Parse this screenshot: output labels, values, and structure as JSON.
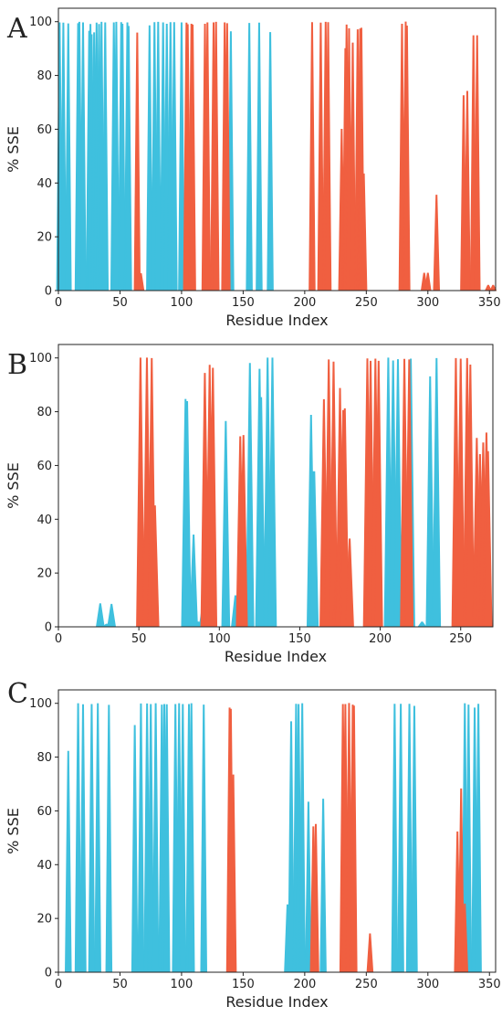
{
  "colors": {
    "helix": "#F05F40",
    "strand": "#3FC0DE",
    "axis": "#222222"
  },
  "chart_data": [
    {
      "panel": "A",
      "type": "area",
      "xlabel": "Residue Index",
      "ylabel": "% SSE",
      "xlim": [
        0,
        355
      ],
      "ylim": [
        0,
        105
      ],
      "xticks": [
        0,
        50,
        100,
        150,
        200,
        250,
        300,
        350
      ],
      "yticks": [
        0,
        20,
        40,
        60,
        80,
        100
      ],
      "blue": [
        [
          1,
          99.6
        ],
        [
          4,
          99.5
        ],
        [
          8,
          99.2
        ],
        [
          16,
          99.3
        ],
        [
          17,
          99.8
        ],
        [
          20,
          99.6
        ],
        [
          25,
          96.5
        ],
        [
          26,
          99
        ],
        [
          27,
          95.2
        ],
        [
          29,
          95.9
        ],
        [
          31,
          99.5
        ],
        [
          33,
          99
        ],
        [
          35,
          99.8
        ],
        [
          38,
          99.6
        ],
        [
          45,
          99.6
        ],
        [
          47,
          99.8
        ],
        [
          51,
          99.7
        ],
        [
          52,
          99.1
        ],
        [
          56,
          99.6
        ],
        [
          57,
          98.3
        ],
        [
          74,
          98.5
        ],
        [
          78,
          99.7
        ],
        [
          81,
          99.8
        ],
        [
          85,
          99.6
        ],
        [
          88,
          99.1
        ],
        [
          91,
          99.7
        ],
        [
          94,
          99.7
        ],
        [
          100,
          99.6
        ],
        [
          101,
          34
        ],
        [
          140,
          96.3
        ],
        [
          155,
          99.4
        ],
        [
          163,
          99.5
        ],
        [
          172,
          96
        ]
      ],
      "red": [
        [
          64,
          95.8
        ],
        [
          67,
          6.3
        ],
        [
          104,
          99.5
        ],
        [
          105,
          98.9
        ],
        [
          108,
          99.1
        ],
        [
          109,
          98.8
        ],
        [
          119,
          99.1
        ],
        [
          121,
          99.6
        ],
        [
          126,
          99.6
        ],
        [
          128,
          99.8
        ],
        [
          135,
          99.6
        ],
        [
          137,
          99.3
        ],
        [
          206,
          99.7
        ],
        [
          213,
          99.5
        ],
        [
          217,
          99.8
        ],
        [
          219,
          99.7
        ],
        [
          230,
          60
        ],
        [
          233,
          90
        ],
        [
          234,
          98.8
        ],
        [
          236,
          97.4
        ],
        [
          239,
          92.1
        ],
        [
          243,
          97
        ],
        [
          245,
          97.3
        ],
        [
          246,
          97.6
        ],
        [
          248,
          43.4
        ],
        [
          279,
          99.1
        ],
        [
          282,
          99.9
        ],
        [
          283,
          98.4
        ],
        [
          297,
          6.5
        ],
        [
          300,
          6.5
        ],
        [
          307,
          35.5
        ],
        [
          329,
          72.5
        ],
        [
          332,
          74.1
        ],
        [
          337,
          94.8
        ],
        [
          340,
          94.8
        ],
        [
          349,
          2
        ],
        [
          353,
          2
        ]
      ]
    },
    {
      "panel": "B",
      "type": "area",
      "xlabel": "Residue Index",
      "ylabel": "% SSE",
      "xlim": [
        0,
        270
      ],
      "ylim": [
        0,
        105
      ],
      "xticks": [
        0,
        50,
        100,
        150,
        200,
        250
      ],
      "yticks": [
        0,
        20,
        40,
        60,
        80,
        100
      ],
      "blue": [
        [
          26,
          8.6
        ],
        [
          30,
          1
        ],
        [
          33,
          8.4
        ],
        [
          79,
          84.6
        ],
        [
          80,
          83.8
        ],
        [
          84,
          34.2
        ],
        [
          87,
          1.8
        ],
        [
          90,
          9.1
        ],
        [
          104,
          76.4
        ],
        [
          110,
          11.6
        ],
        [
          112,
          1.3
        ],
        [
          119,
          98
        ],
        [
          125,
          95.8
        ],
        [
          126,
          85.3
        ],
        [
          130,
          100
        ],
        [
          133,
          100
        ],
        [
          157,
          78.7
        ],
        [
          158,
          57.7
        ],
        [
          159,
          57.7
        ],
        [
          205,
          100
        ],
        [
          208,
          98.9
        ],
        [
          211,
          99.4
        ],
        [
          219,
          99.6
        ],
        [
          226,
          1.8
        ],
        [
          231,
          93
        ],
        [
          233,
          11
        ],
        [
          235,
          99.8
        ]
      ],
      "red": [
        [
          51,
          100
        ],
        [
          55,
          100
        ],
        [
          58,
          99.8
        ],
        [
          60,
          45
        ],
        [
          91,
          94.3
        ],
        [
          94,
          97.3
        ],
        [
          96,
          96.2
        ],
        [
          113,
          70.7
        ],
        [
          115,
          71.2
        ],
        [
          165,
          84.5
        ],
        [
          168,
          99.3
        ],
        [
          171,
          98.5
        ],
        [
          173,
          26
        ],
        [
          174,
          29.5
        ],
        [
          175,
          88.7
        ],
        [
          177,
          80.5
        ],
        [
          178,
          81.1
        ],
        [
          181,
          32.7
        ],
        [
          192,
          99.7
        ],
        [
          194,
          98.8
        ],
        [
          197,
          99.6
        ],
        [
          199,
          98.8
        ],
        [
          215,
          99.5
        ],
        [
          218,
          99.3
        ],
        [
          247,
          99.8
        ],
        [
          250,
          99.6
        ],
        [
          254,
          99.8
        ],
        [
          256,
          97.4
        ],
        [
          260,
          70.1
        ],
        [
          262,
          64.1
        ],
        [
          264,
          68.4
        ],
        [
          266,
          72.1
        ],
        [
          267,
          65.2
        ]
      ]
    },
    {
      "panel": "C",
      "type": "area",
      "xlabel": "Residue Index",
      "ylabel": "% SSE",
      "xlim": [
        0,
        355
      ],
      "ylim": [
        0,
        105
      ],
      "xticks": [
        0,
        50,
        100,
        150,
        200,
        250,
        300,
        350
      ],
      "yticks": [
        0,
        20,
        40,
        60,
        80,
        100
      ],
      "blue": [
        [
          8,
          82.2
        ],
        [
          16,
          99.9
        ],
        [
          20,
          99.5
        ],
        [
          27,
          99.6
        ],
        [
          32,
          99.9
        ],
        [
          41,
          99.3
        ],
        [
          62,
          91.8
        ],
        [
          67,
          99.8
        ],
        [
          72,
          99.8
        ],
        [
          75,
          99.6
        ],
        [
          79,
          99.9
        ],
        [
          84,
          99.4
        ],
        [
          86,
          99.6
        ],
        [
          88,
          99.5
        ],
        [
          95,
          99.6
        ],
        [
          98,
          99.9
        ],
        [
          101,
          99.6
        ],
        [
          106,
          99.6
        ],
        [
          108,
          99.9
        ],
        [
          118,
          99.4
        ],
        [
          186,
          25.1
        ],
        [
          189,
          93.2
        ],
        [
          193,
          99.7
        ],
        [
          195,
          99.6
        ],
        [
          198,
          99.9
        ],
        [
          203,
          63.3
        ],
        [
          215,
          64.4
        ],
        [
          273,
          99.7
        ],
        [
          278,
          99.7
        ],
        [
          285,
          99.7
        ],
        [
          289,
          98.9
        ],
        [
          330,
          99.9
        ],
        [
          333,
          99.4
        ],
        [
          338,
          98.3
        ],
        [
          341,
          99.7
        ]
      ],
      "red": [
        [
          139,
          98.3
        ],
        [
          140,
          97.8
        ],
        [
          142,
          73.4
        ],
        [
          207,
          54.1
        ],
        [
          209,
          55
        ],
        [
          231,
          99.6
        ],
        [
          233,
          99.6
        ],
        [
          236,
          100
        ],
        [
          239,
          99.4
        ],
        [
          240,
          99
        ],
        [
          253,
          14.3
        ],
        [
          324,
          52.2
        ],
        [
          327,
          68.2
        ],
        [
          330,
          25.4
        ]
      ]
    }
  ]
}
